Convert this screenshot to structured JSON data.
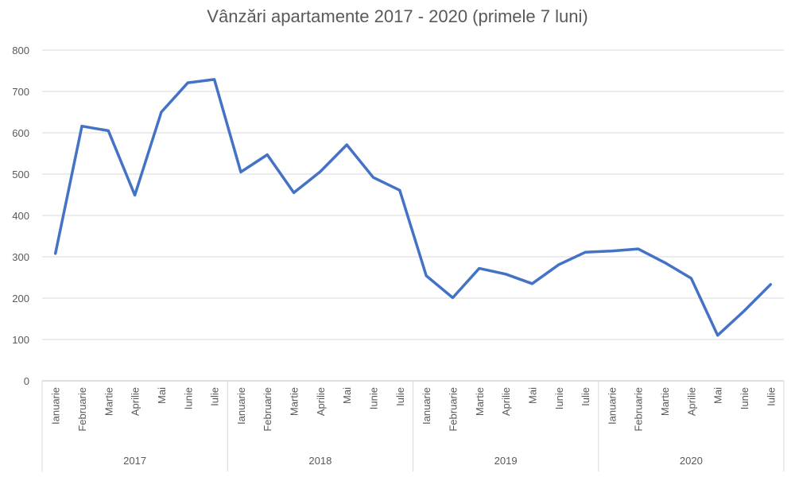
{
  "chart_data": {
    "type": "line",
    "title": "Vânzări apartamente 2017 - 2020 (primele 7 luni)",
    "xlabel": "",
    "ylabel": "",
    "ylim": [
      0,
      800
    ],
    "yticks": [
      0,
      100,
      200,
      300,
      400,
      500,
      600,
      700,
      800
    ],
    "grid": true,
    "line_color": "#4472C4",
    "grid_color": "#D9D9D9",
    "groups": [
      {
        "label": "2017",
        "months": [
          "Ianuarie",
          "Februarie",
          "Martie",
          "Aprilie",
          "Mai",
          "Iunie",
          "Iulie"
        ],
        "values": [
          308,
          616,
          605,
          449,
          650,
          721,
          729
        ]
      },
      {
        "label": "2018",
        "months": [
          "Ianuarie",
          "Februarie",
          "Martie",
          "Aprilie",
          "Mai",
          "Iunie",
          "Iulie"
        ],
        "values": [
          505,
          547,
          455,
          506,
          571,
          492,
          461
        ]
      },
      {
        "label": "2019",
        "months": [
          "Ianuarie",
          "Februarie",
          "Martie",
          "Aprilie",
          "Mai",
          "Iunie",
          "Iulie"
        ],
        "values": [
          254,
          201,
          272,
          258,
          235,
          281,
          311
        ]
      },
      {
        "label": "2020",
        "months": [
          "Ianuarie",
          "Februarie",
          "Martie",
          "Aprilie",
          "Mai",
          "Iunie",
          "Iulie"
        ],
        "values": [
          314,
          319,
          286,
          248,
          110,
          169,
          233
        ]
      }
    ]
  }
}
